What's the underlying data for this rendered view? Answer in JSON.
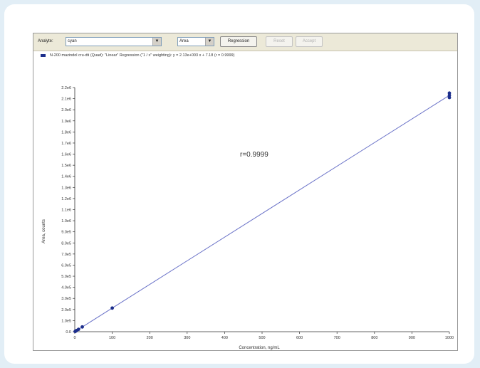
{
  "toolbar": {
    "analyte_label": "Analyte:",
    "analyte_value": "cyan",
    "metric_value": "Area",
    "regression_button": "Regression",
    "reset_button": "Reset",
    "accept_button": "Accept"
  },
  "legend": {
    "text": "N-200 mazindol cru-dti (Quad): \"Linear\" Regression (\"1 / x\" weighting): y = 2.13e+003 x + 7.18 (r = 0.9999)",
    "color": "#1c2e8c"
  },
  "annotation": "r=0.9999",
  "chart_data": {
    "type": "scatter",
    "xlabel": "Concentration, ng/mL",
    "ylabel": "Area, counts",
    "xlim": [
      0,
      1000
    ],
    "ylim": [
      0,
      2200000
    ],
    "x_ticks": [
      0,
      100,
      200,
      300,
      400,
      500,
      600,
      700,
      800,
      900,
      1000
    ],
    "x_tick_labels": [
      "0",
      "100",
      "200",
      "300",
      "400",
      "500",
      "600",
      "700",
      "800",
      "900",
      "1000"
    ],
    "y_ticks": [
      0,
      100000,
      200000,
      300000,
      400000,
      500000,
      600000,
      700000,
      800000,
      900000,
      1000000,
      1100000,
      1200000,
      1300000,
      1400000,
      1500000,
      1600000,
      1700000,
      1800000,
      1900000,
      2000000,
      2100000,
      2200000
    ],
    "y_tick_labels": [
      "0.0",
      "1.0e5",
      "2.0e5",
      "3.0e5",
      "4.0e5",
      "5.0e5",
      "6.0e5",
      "7.0e5",
      "8.0e5",
      "9.0e5",
      "1.0e6",
      "1.1e6",
      "1.2e6",
      "1.3e6",
      "1.4e6",
      "1.5e6",
      "1.6e6",
      "1.7e6",
      "1.8e6",
      "1.9e6",
      "2.0e6",
      "2.1e6",
      "2.2e6"
    ],
    "points": [
      {
        "x": 1,
        "y": 2300
      },
      {
        "x": 2,
        "y": 4500
      },
      {
        "x": 5,
        "y": 11000
      },
      {
        "x": 10,
        "y": 21500
      },
      {
        "x": 20,
        "y": 43000
      },
      {
        "x": 100,
        "y": 213000
      },
      {
        "x": 1000,
        "y": 2110000
      },
      {
        "x": 1000,
        "y": 2150000
      },
      {
        "x": 1000,
        "y": 2130000
      }
    ],
    "fit": {
      "slope": 2130,
      "intercept": 7.18,
      "x_range": [
        0,
        1000
      ]
    },
    "point_color": "#1c2e8c",
    "line_color": "#6b73c8",
    "grid": false,
    "legend_position": "top-left"
  }
}
